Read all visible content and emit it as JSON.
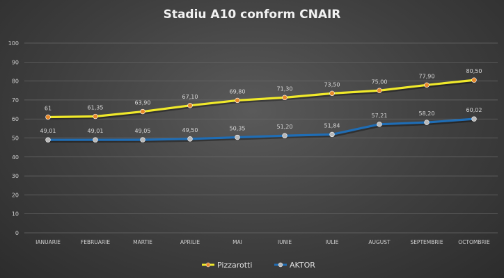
{
  "chart_data": {
    "type": "line",
    "title": "Stadiu A10 conform CNAIR",
    "categories": [
      "IANUARIE",
      "FEBRUARIE",
      "MARTIE",
      "APRILIE",
      "MAI",
      "IUNIE",
      "IULIE",
      "AUGUST",
      "SEPTEMBRIE",
      "OCTOMBRIE"
    ],
    "ylim": [
      0,
      100
    ],
    "yticks": [
      0,
      10,
      20,
      30,
      40,
      50,
      60,
      70,
      80,
      90,
      100
    ],
    "grid": true,
    "legend": "bottom",
    "series": [
      {
        "name": "Pizzarotti",
        "color": "#f0e92a",
        "marker_color": "#e8892a",
        "values": [
          61,
          61.35,
          63.9,
          67.1,
          69.8,
          71.3,
          73.5,
          75.0,
          77.9,
          80.5
        ],
        "labels": [
          "61",
          "61,35",
          "63,90",
          "67,10",
          "69,80",
          "71,30",
          "73,50",
          "75,00",
          "77,90",
          "80,50"
        ]
      },
      {
        "name": "AKTOR",
        "color": "#1f6db5",
        "marker_color": "#b8b8b8",
        "values": [
          49.01,
          49.01,
          49.05,
          49.5,
          50.35,
          51.2,
          51.84,
          57.21,
          58.2,
          60.02
        ],
        "labels": [
          "49,01",
          "49,01",
          "49,05",
          "49,50",
          "50,35",
          "51,20",
          "51,84",
          "57,21",
          "58,20",
          "60,02"
        ]
      }
    ]
  }
}
